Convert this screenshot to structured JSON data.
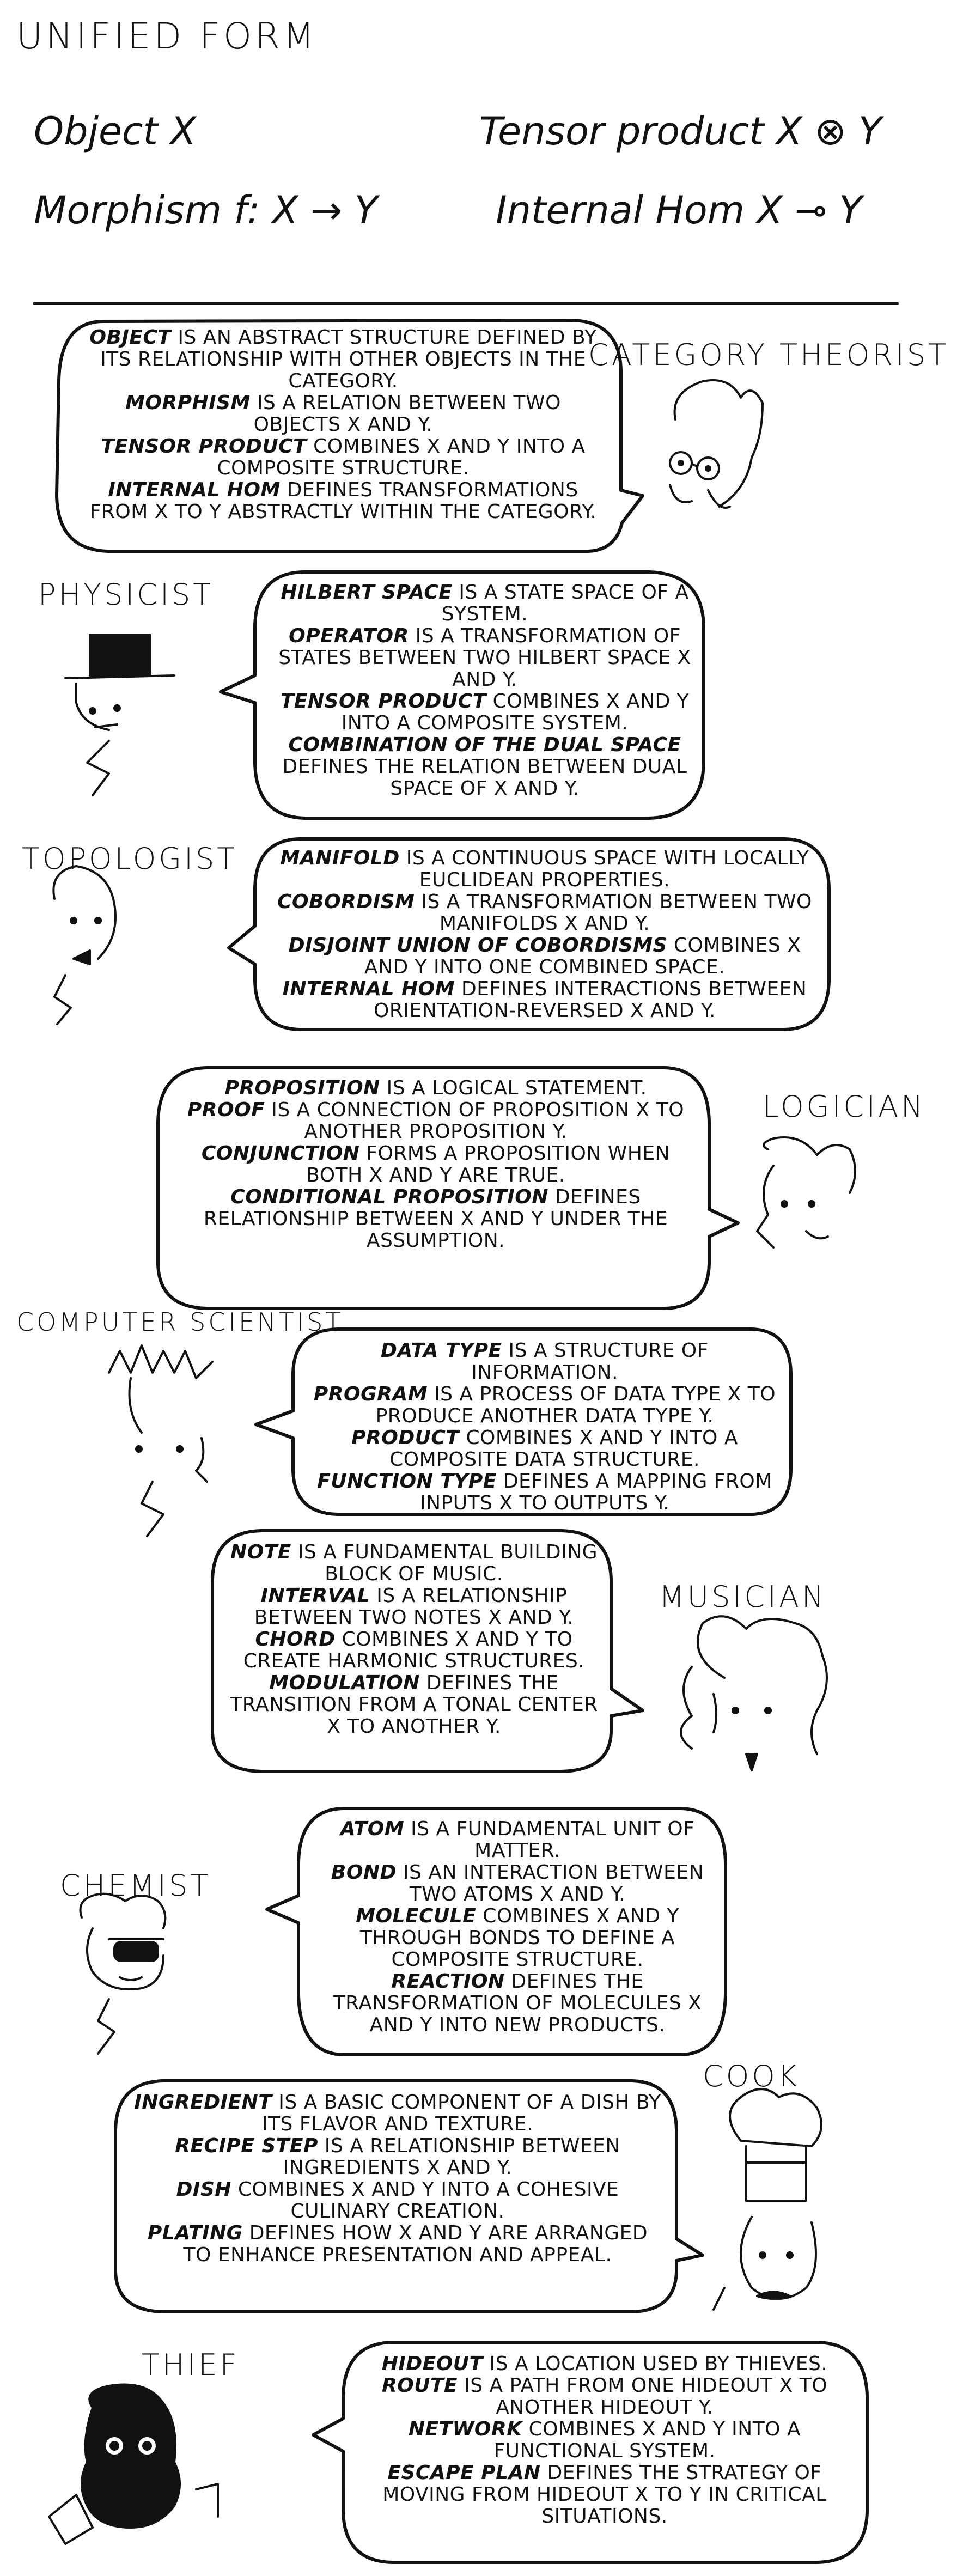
{
  "title": "UNIFIED FORM",
  "definitions": {
    "object": "Object X",
    "morphism": "Morphism f: X → Y",
    "tensor": "Tensor product X ⊗ Y",
    "hom": "Internal Hom X ⊸ Y"
  },
  "panels": [
    {
      "role": "CATEGORY THEORIST",
      "lines": [
        {
          "term": "OBJECT",
          "rest": " IS AN ABSTRACT STRUCTURE DEFINED BY ITS RELATIONSHIP WITH OTHER OBJECTS IN THE CATEGORY."
        },
        {
          "term": "MORPHISM",
          "rest": " IS A RELATION BETWEEN TWO OBJECTS X AND Y."
        },
        {
          "term": "TENSOR PRODUCT",
          "rest": " COMBINES X AND Y INTO A COMPOSITE STRUCTURE."
        },
        {
          "term": "INTERNAL HOM",
          "rest": " DEFINES TRANSFORMATIONS FROM X TO Y ABSTRACTLY WITHIN THE CATEGORY."
        }
      ]
    },
    {
      "role": "PHYSICIST",
      "lines": [
        {
          "term": "HILBERT SPACE",
          "rest": " IS A STATE SPACE OF A SYSTEM."
        },
        {
          "term": "OPERATOR",
          "rest": " IS A TRANSFORMATION OF STATES BETWEEN TWO HILBERT SPACE X AND Y."
        },
        {
          "term": "TENSOR PRODUCT",
          "rest": " COMBINES X AND Y INTO A COMPOSITE SYSTEM."
        },
        {
          "term": "COMBINATION OF THE DUAL SPACE",
          "rest": " DEFINES THE RELATION BETWEEN DUAL SPACE OF X AND Y."
        }
      ]
    },
    {
      "role": "TOPOLOGIST",
      "lines": [
        {
          "term": "MANIFOLD",
          "rest": " IS A CONTINUOUS SPACE WITH LOCALLY EUCLIDEAN PROPERTIES."
        },
        {
          "term": "COBORDISM",
          "rest": " IS A TRANSFORMATION BETWEEN TWO MANIFOLDS X AND Y."
        },
        {
          "term": "DISJOINT UNION OF COBORDISMS",
          "rest": " COMBINES X AND Y INTO ONE COMBINED SPACE."
        },
        {
          "term": "INTERNAL HOM",
          "rest": " DEFINES INTERACTIONS BETWEEN ORIENTATION-REVERSED X AND Y."
        }
      ]
    },
    {
      "role": "LOGICIAN",
      "lines": [
        {
          "term": "PROPOSITION",
          "rest": " IS A LOGICAL STATEMENT."
        },
        {
          "term": "PROOF",
          "rest": " IS A CONNECTION OF PROPOSITION X TO ANOTHER PROPOSITION Y."
        },
        {
          "term": "CONJUNCTION",
          "rest": " FORMS A PROPOSITION WHEN BOTH X AND Y ARE TRUE."
        },
        {
          "term": "CONDITIONAL PROPOSITION",
          "rest": " DEFINES RELATIONSHIP BETWEEN X AND Y UNDER THE ASSUMPTION."
        }
      ]
    },
    {
      "role": "COMPUTER SCIENTIST",
      "lines": [
        {
          "term": "DATA TYPE",
          "rest": " IS A STRUCTURE OF INFORMATION."
        },
        {
          "term": "PROGRAM",
          "rest": " IS A PROCESS OF DATA TYPE X TO PRODUCE ANOTHER DATA TYPE Y."
        },
        {
          "term": "PRODUCT",
          "rest": " COMBINES X AND Y INTO A COMPOSITE DATA STRUCTURE."
        },
        {
          "term": "FUNCTION TYPE",
          "rest": " DEFINES A MAPPING FROM INPUTS X TO OUTPUTS Y."
        }
      ]
    },
    {
      "role": "MUSICIAN",
      "lines": [
        {
          "term": "NOTE",
          "rest": " IS A FUNDAMENTAL BUILDING BLOCK OF MUSIC."
        },
        {
          "term": "INTERVAL",
          "rest": " IS A RELATIONSHIP BETWEEN TWO NOTES X AND Y."
        },
        {
          "term": "CHORD",
          "rest": " COMBINES X AND Y TO CREATE HARMONIC STRUCTURES."
        },
        {
          "term": "MODULATION",
          "rest": " DEFINES THE TRANSITION FROM A TONAL CENTER X TO ANOTHER Y."
        }
      ]
    },
    {
      "role": "CHEMIST",
      "lines": [
        {
          "term": "ATOM",
          "rest": " IS A FUNDAMENTAL UNIT OF MATTER."
        },
        {
          "term": "BOND",
          "rest": " IS AN INTERACTION BETWEEN TWO ATOMS X AND Y."
        },
        {
          "term": "MOLECULE",
          "rest": " COMBINES X AND Y THROUGH BONDS TO DEFINE A COMPOSITE STRUCTURE."
        },
        {
          "term": "REACTION",
          "rest": " DEFINES THE TRANSFORMATION OF MOLECULES X AND Y INTO NEW PRODUCTS."
        }
      ]
    },
    {
      "role": "COOK",
      "lines": [
        {
          "term": "INGREDIENT",
          "rest": " IS A BASIC COMPONENT OF A DISH BY ITS FLAVOR AND TEXTURE."
        },
        {
          "term": "RECIPE STEP",
          "rest": " IS A RELATIONSHIP BETWEEN INGREDIENTS X AND Y."
        },
        {
          "term": "DISH",
          "rest": " COMBINES X AND Y INTO A COHESIVE CULINARY CREATION."
        },
        {
          "term": "PLATING",
          "rest": " DEFINES HOW X AND Y ARE ARRANGED TO ENHANCE PRESENTATION AND APPEAL."
        }
      ]
    },
    {
      "role": "THIEF",
      "lines": [
        {
          "term": "HIDEOUT",
          "rest": " IS A LOCATION USED BY THIEVES."
        },
        {
          "term": "ROUTE",
          "rest": " IS A PATH FROM ONE HIDEOUT X TO ANOTHER HIDEOUT Y."
        },
        {
          "term": "NETWORK",
          "rest": " COMBINES X AND Y INTO A FUNCTIONAL SYSTEM."
        },
        {
          "term": "ESCAPE PLAN",
          "rest": " DEFINES THE STRATEGY OF MOVING FROM HIDEOUT X TO Y IN CRITICAL SITUATIONS."
        }
      ]
    }
  ]
}
